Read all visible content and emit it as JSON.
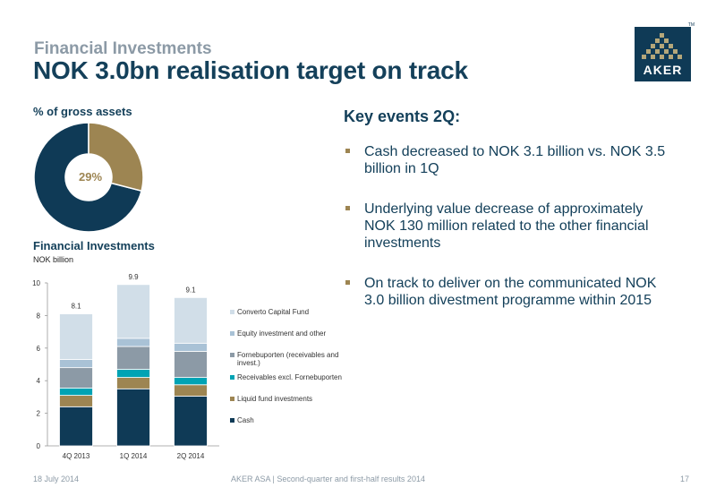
{
  "header": {
    "kicker": "Financial Investments",
    "title": "NOK 3.0bn realisation target on track",
    "logo_text": "AKER",
    "logo_tm": "TM"
  },
  "donut": {
    "heading": "% of gross assets",
    "label": "29%",
    "share_percent": 29,
    "colors": {
      "share": "#9d8552",
      "rest": "#0f3a56"
    }
  },
  "chart": {
    "heading": "Financial Investments",
    "unit": "NOK billion"
  },
  "chart_data": {
    "type": "bar",
    "stacked": true,
    "title": "Financial Investments",
    "ylabel": "NOK billion",
    "categories": [
      "4Q 2013",
      "1Q 2014",
      "2Q 2014"
    ],
    "ylim": [
      0,
      10
    ],
    "yticks": [
      0,
      2,
      4,
      6,
      8,
      10
    ],
    "totals": [
      "8.1",
      "9.9",
      "9.1"
    ],
    "series": [
      {
        "name": "Cash",
        "values": [
          2.4,
          3.5,
          3.05
        ],
        "color": "#0f3a56"
      },
      {
        "name": "Liquid fund investments",
        "values": [
          0.7,
          0.7,
          0.7
        ],
        "color": "#9d8552"
      },
      {
        "name": "Receivables excl. Fornebuporten",
        "values": [
          0.45,
          0.5,
          0.45
        ],
        "color": "#00a3b4"
      },
      {
        "name": "Fornebuporten (receivables and invest.)",
        "values": [
          1.25,
          1.4,
          1.6
        ],
        "color": "#8c9aa6"
      },
      {
        "name": "Equity investment and other",
        "values": [
          0.5,
          0.5,
          0.5
        ],
        "color": "#a9c2d6"
      },
      {
        "name": "Converto Capital Fund",
        "values": [
          2.8,
          3.3,
          2.8
        ],
        "color": "#d1dee8"
      }
    ],
    "grid": false,
    "legend": "right"
  },
  "legend_items": [
    {
      "label": "Converto Capital Fund",
      "color": "#d1dee8"
    },
    {
      "label": "Equity investment and other",
      "color": "#a9c2d6"
    },
    {
      "label": "Fornebuporten (receivables and invest.)",
      "color": "#8c9aa6"
    },
    {
      "label": "Receivables excl. Fornebuporten",
      "color": "#00a3b4"
    },
    {
      "label": "Liquid fund investments",
      "color": "#9d8552"
    },
    {
      "label": "Cash",
      "color": "#0f3a56"
    }
  ],
  "events": {
    "heading": "Key events 2Q:",
    "items": [
      "Cash decreased to NOK 3.1 billion vs. NOK 3.5 billion in 1Q",
      "Underlying value decrease of approximately NOK 130 million related to the other financial investments",
      "On track to deliver on the communicated NOK 3.0 billion divestment programme within 2015"
    ]
  },
  "footer": {
    "date": "18 July 2014",
    "center": "AKER ASA | Second-quarter and first-half results 2014",
    "page": "17"
  }
}
